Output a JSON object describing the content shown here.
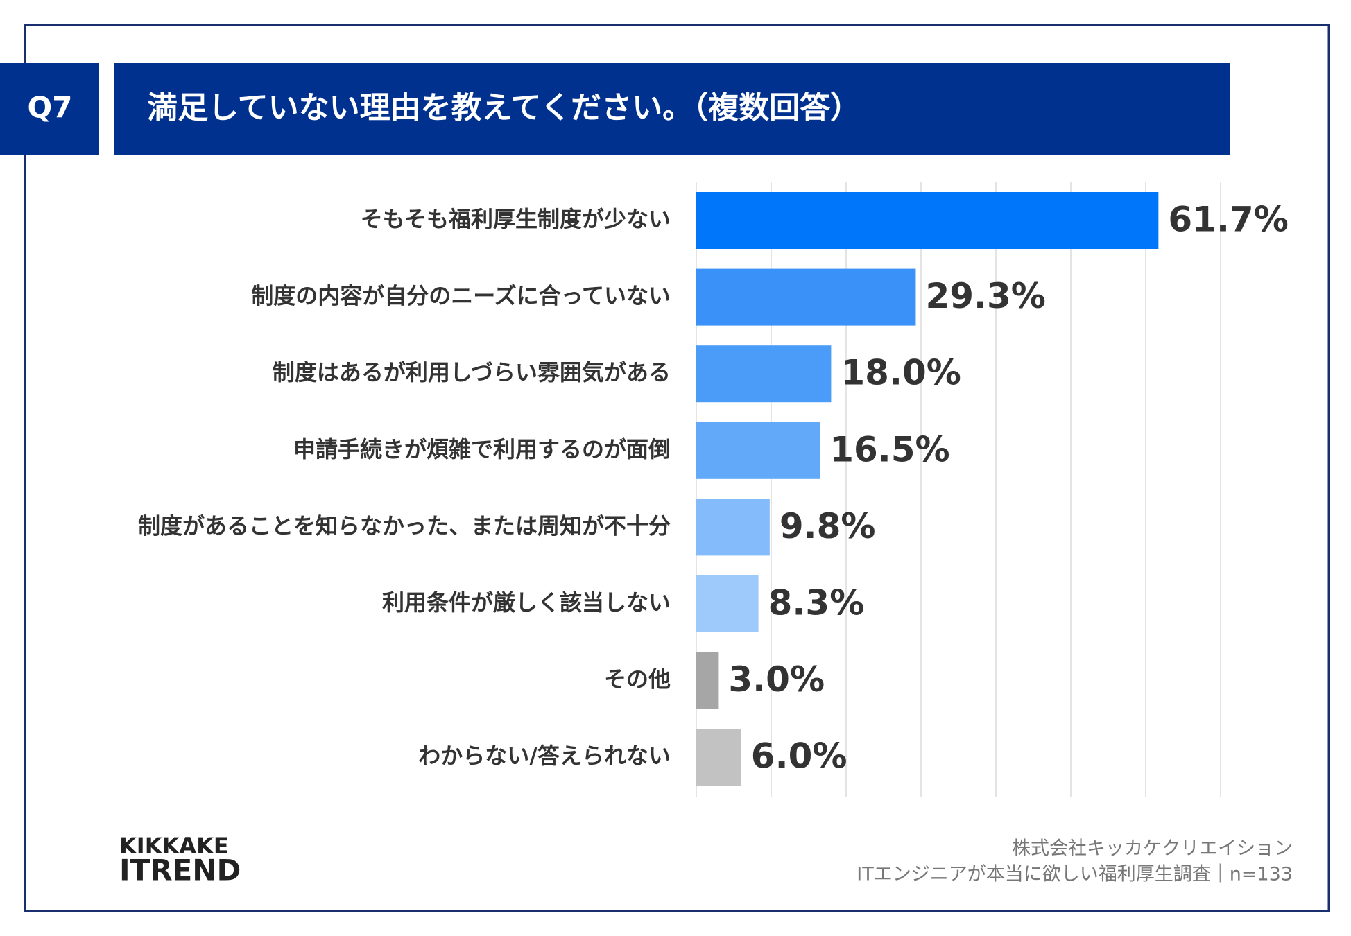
{
  "question": "Q7",
  "chart_data": {
    "type": "hbar",
    "title": "満足していない理由を教えてください。（複数回答）",
    "categories": [
      "そもそも福利厚生制度が少ない",
      "制度の内容が自分のニーズに合っていない",
      "制度はあるが利用しづらい雰囲気がある",
      "申請手続きが煩雑で利用するのが面倒",
      "制度があることを知らなかった、または周知が不十分",
      "利用条件が厳しく該当しない",
      "その他",
      "わからない/答えられない"
    ],
    "values": [
      61.7,
      29.3,
      18.0,
      16.5,
      9.8,
      8.3,
      3.0,
      6.0
    ],
    "value_labels": [
      "61.7%",
      "29.3%",
      "18.0%",
      "16.5%",
      "9.8%",
      "8.3%",
      "3.0%",
      "6.0%"
    ],
    "colors": [
      "#0077fa",
      "#3a92f9",
      "#4a9cf8",
      "#62aaf9",
      "#84bbfa",
      "#9dcafb",
      "#a6a6a6",
      "#c2c2c2"
    ],
    "xlim": [
      0,
      70
    ],
    "xticks": [
      0,
      10,
      20,
      30,
      40,
      50,
      60,
      70
    ],
    "grid": true
  },
  "footer": {
    "company": "株式会社キッカケクリエイション",
    "survey": "ITエンジニアが本当に欲しい福利厚生調査｜n=133"
  },
  "logo": {
    "line1": "KIKKAKE",
    "line2": "ITREND"
  }
}
